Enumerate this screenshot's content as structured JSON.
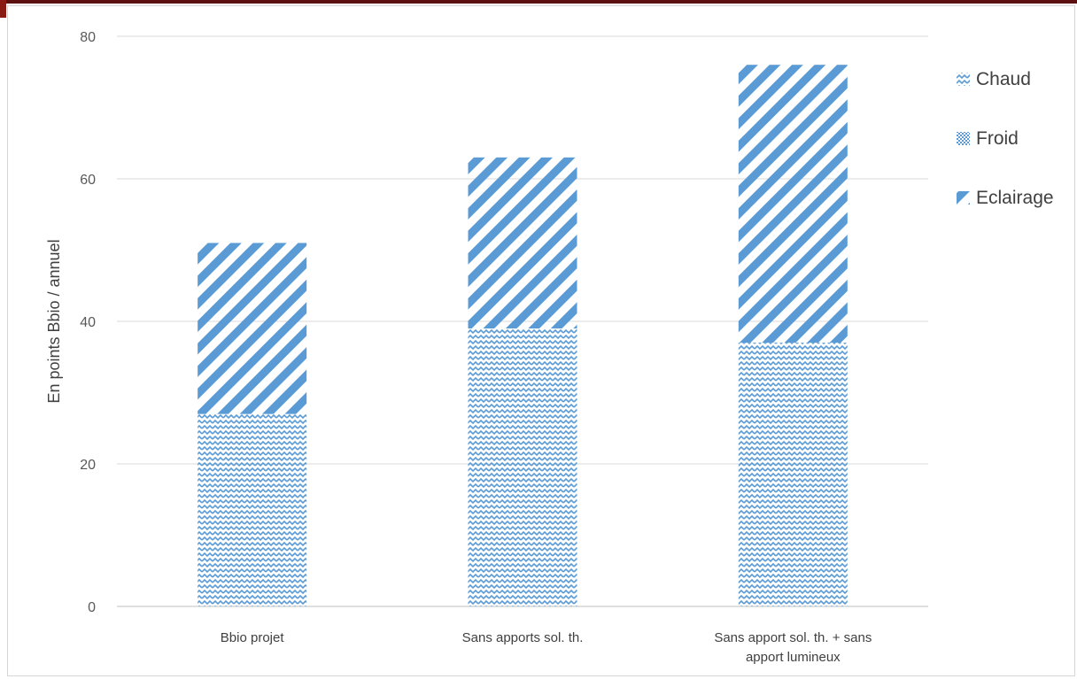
{
  "chart_data": {
    "type": "bar",
    "stacked": true,
    "title": "",
    "xlabel": "",
    "ylabel": "En points Bbio / annuel",
    "ylim": [
      0,
      80
    ],
    "yticks": [
      0,
      20,
      40,
      60,
      80
    ],
    "grid": true,
    "legend_position": "right",
    "categories": [
      [
        "Bbio projet"
      ],
      [
        "Sans apports sol. th."
      ],
      [
        "Sans apport sol. th. + sans",
        "apport lumineux"
      ]
    ],
    "series": [
      {
        "name": "Chaud",
        "values": [
          27,
          39,
          37
        ],
        "pattern": "wave",
        "color": "#5b9bd5"
      },
      {
        "name": "Froid",
        "values": [
          0,
          0,
          0
        ],
        "pattern": "dots",
        "color": "#5b9bd5"
      },
      {
        "name": "Eclairage",
        "values": [
          24,
          24,
          39
        ],
        "pattern": "diagonal",
        "color": "#5b9bd5"
      }
    ]
  }
}
